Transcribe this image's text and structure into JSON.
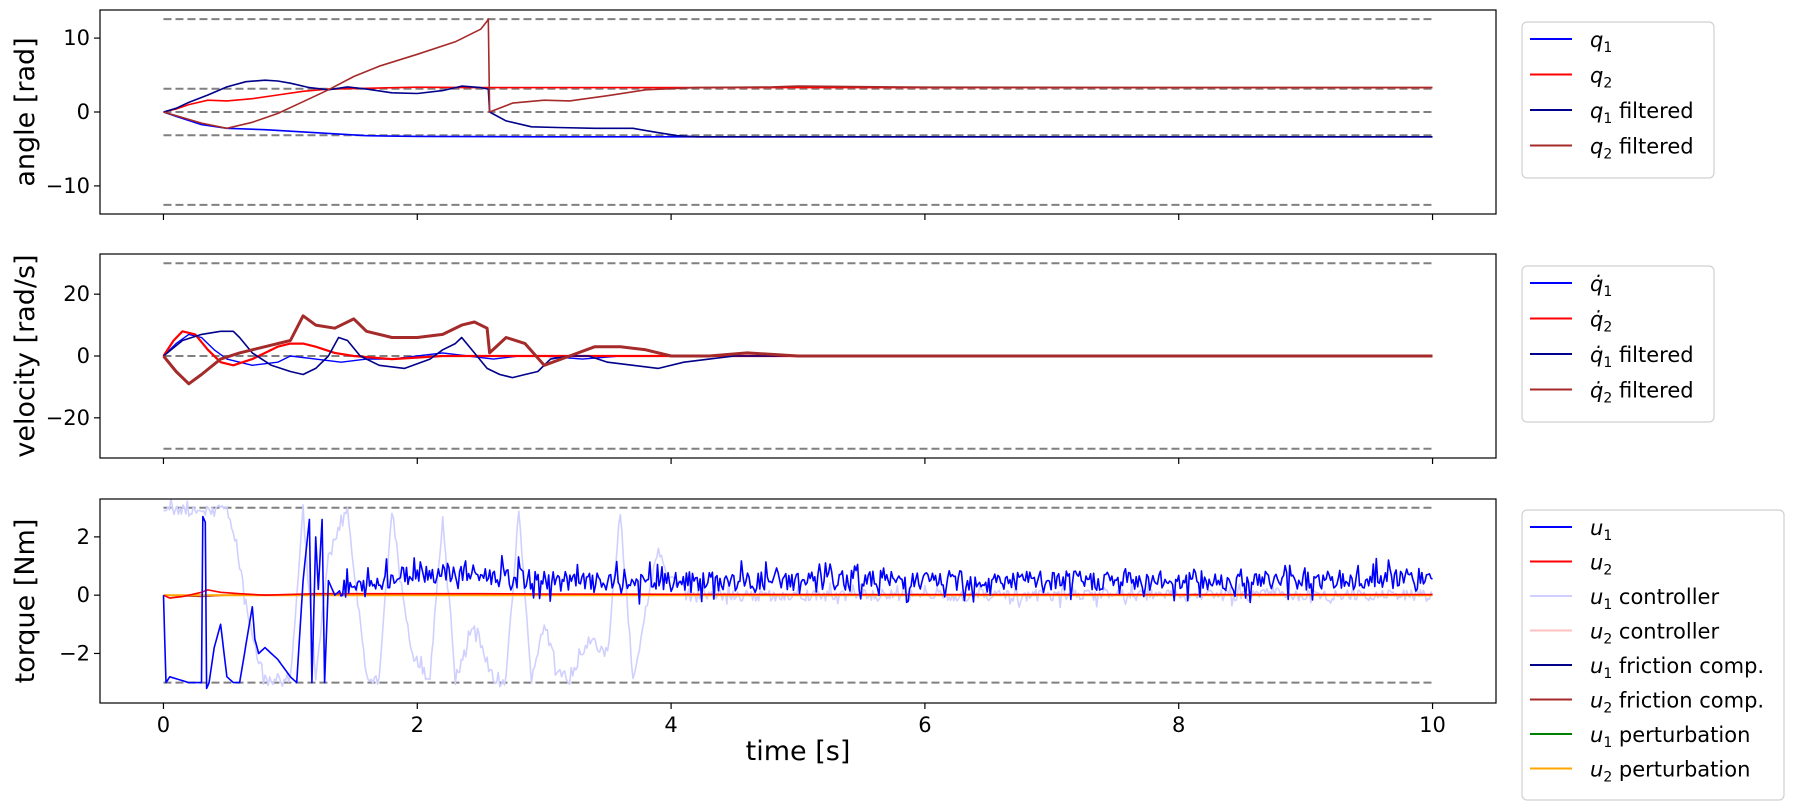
{
  "chart_data": [
    {
      "type": "line",
      "ylabel": "angle [rad]",
      "xlabel": "",
      "xlim": [
        -0.5,
        10.5
      ],
      "ylim": [
        -13.8,
        13.8
      ],
      "xticks": [
        0,
        2,
        4,
        6,
        8,
        10
      ],
      "xtick_labels": [
        "",
        "",
        "",
        "",
        "",
        ""
      ],
      "yticks": [
        -10,
        0,
        10
      ],
      "ytick_labels": [
        "−10",
        "0",
        "10"
      ],
      "grid": false,
      "legend_position": "outside-right-top",
      "hlines": [
        -12.57,
        -3.14,
        0,
        3.14,
        12.57
      ],
      "series": [
        {
          "name": "q",
          "name_sub": "1",
          "name_suffix": "",
          "color": "#0000ff",
          "width": 1.6,
          "x": [
            0,
            0.1,
            0.3,
            0.5,
            0.8,
            1.2,
            1.6,
            2.0,
            3.0,
            4.0,
            6.0,
            8.0,
            10.0
          ],
          "y": [
            0,
            -0.6,
            -1.7,
            -2.2,
            -2.4,
            -2.8,
            -3.2,
            -3.3,
            -3.35,
            -3.35,
            -3.35,
            -3.35,
            -3.35
          ]
        },
        {
          "name": "q",
          "name_sub": "2",
          "name_suffix": "",
          "color": "#ff0000",
          "width": 1.6,
          "x": [
            0,
            0.1,
            0.2,
            0.35,
            0.5,
            0.7,
            0.9,
            1.1,
            1.3,
            1.6,
            2.0,
            2.4,
            2.55,
            3.0,
            4.0,
            6.0,
            8.0,
            10.0
          ],
          "y": [
            0,
            0.4,
            1.0,
            1.6,
            1.5,
            1.8,
            2.3,
            2.8,
            3.1,
            3.2,
            3.35,
            3.3,
            3.3,
            3.3,
            3.3,
            3.3,
            3.3,
            3.3
          ]
        },
        {
          "name": "q",
          "name_sub": "1",
          "name_suffix": " filtered",
          "color": "#00008b",
          "width": 1.6,
          "x": [
            0,
            0.1,
            0.2,
            0.35,
            0.5,
            0.65,
            0.8,
            0.9,
            1.0,
            1.15,
            1.3,
            1.45,
            1.6,
            1.8,
            2.0,
            2.2,
            2.35,
            2.5,
            2.56,
            2.57,
            2.7,
            2.9,
            3.1,
            3.4,
            3.7,
            3.9,
            4.05,
            4.2,
            5.0,
            7.0,
            10.0
          ],
          "y": [
            0,
            0.5,
            1.3,
            2.3,
            3.4,
            4.1,
            4.3,
            4.2,
            3.9,
            3.3,
            3.0,
            3.4,
            3.1,
            2.6,
            2.5,
            2.9,
            3.5,
            3.3,
            3.1,
            0,
            -1.2,
            -2.0,
            -2.1,
            -2.2,
            -2.2,
            -2.8,
            -3.2,
            -3.35,
            -3.35,
            -3.35,
            -3.35
          ]
        },
        {
          "name": "q",
          "name_sub": "2",
          "name_suffix": " filtered",
          "color": "#a52a2a",
          "width": 1.6,
          "x": [
            0,
            0.1,
            0.3,
            0.5,
            0.7,
            0.9,
            1.1,
            1.3,
            1.5,
            1.7,
            2.0,
            2.3,
            2.5,
            2.55,
            2.56,
            2.57,
            2.75,
            3.0,
            3.2,
            3.5,
            3.8,
            4.2,
            4.8,
            5.0,
            6.0,
            8.0,
            10.0
          ],
          "y": [
            0,
            -0.5,
            -1.5,
            -2.2,
            -1.4,
            -0.2,
            1.4,
            3.0,
            4.8,
            6.2,
            7.8,
            9.5,
            11.2,
            12.3,
            12.6,
            0,
            1.2,
            1.6,
            1.5,
            2.2,
            3.0,
            3.3,
            3.4,
            3.5,
            3.35,
            3.3,
            3.3
          ]
        }
      ]
    },
    {
      "type": "line",
      "ylabel": "velocity [rad/s]",
      "xlabel": "",
      "xlim": [
        -0.5,
        10.5
      ],
      "ylim": [
        -33,
        33
      ],
      "xticks": [
        0,
        2,
        4,
        6,
        8,
        10
      ],
      "xtick_labels": [
        "",
        "",
        "",
        "",
        "",
        ""
      ],
      "yticks": [
        -20,
        0,
        20
      ],
      "ytick_labels": [
        "−20",
        "0",
        "20"
      ],
      "grid": false,
      "legend_position": "outside-right-top",
      "hlines": [
        -30,
        0,
        30
      ],
      "series": [
        {
          "name": "q̇",
          "name_sub": "1",
          "name_suffix": "",
          "color": "#0000ff",
          "width": 1.4,
          "x": [
            0,
            0.1,
            0.2,
            0.3,
            0.4,
            0.5,
            0.7,
            0.9,
            1.0,
            1.2,
            1.4,
            1.6,
            1.8,
            2.0,
            2.2,
            2.4,
            2.6,
            2.8,
            3.0,
            3.3,
            3.6,
            4.0,
            4.5,
            5.0,
            10.0
          ],
          "y": [
            0,
            4,
            7,
            6,
            2,
            -1,
            -3,
            -2,
            0,
            -1,
            -2,
            -1,
            -1,
            0,
            1,
            0,
            -1,
            0,
            0,
            -1,
            0,
            0,
            0,
            0,
            0
          ]
        },
        {
          "name": "q̇",
          "name_sub": "2",
          "name_suffix": "",
          "color": "#ff0000",
          "width": 2.2,
          "x": [
            0,
            0.08,
            0.15,
            0.25,
            0.35,
            0.45,
            0.55,
            0.7,
            0.9,
            1.0,
            1.1,
            1.2,
            1.35,
            1.5,
            1.8,
            2.2,
            2.6,
            3.0,
            4.0,
            6.0,
            10.0
          ],
          "y": [
            0,
            5,
            8,
            7,
            2,
            -2,
            -3,
            -1,
            3,
            4,
            4,
            3,
            1,
            0,
            -1,
            0,
            0,
            0,
            0,
            0,
            0
          ]
        },
        {
          "name": "q̇",
          "name_sub": "1",
          "name_suffix": " filtered",
          "color": "#00008b",
          "width": 1.6,
          "x": [
            0,
            0.15,
            0.3,
            0.45,
            0.55,
            0.6,
            0.7,
            0.85,
            1.0,
            1.1,
            1.2,
            1.3,
            1.38,
            1.45,
            1.55,
            1.7,
            1.9,
            2.1,
            2.2,
            2.3,
            2.35,
            2.45,
            2.55,
            2.65,
            2.75,
            2.85,
            2.95,
            3.05,
            3.2,
            3.35,
            3.5,
            3.7,
            3.9,
            4.1,
            4.3,
            4.5,
            4.8,
            5.2,
            6.0,
            10.0
          ],
          "y": [
            0,
            5,
            7,
            8,
            8,
            6,
            1,
            -3,
            -5,
            -6,
            -4,
            0,
            6,
            5,
            0,
            -3,
            -4,
            -1,
            2,
            4,
            6,
            1,
            -4,
            -6,
            -7,
            -6,
            -5,
            -1,
            0,
            0,
            -2,
            -3,
            -4,
            -2,
            -1,
            0,
            0,
            0,
            0,
            0
          ]
        },
        {
          "name": "q̇",
          "name_sub": "2",
          "name_suffix": " filtered",
          "color": "#a52a2a",
          "width": 3.0,
          "x": [
            0,
            0.1,
            0.2,
            0.3,
            0.45,
            0.6,
            0.8,
            1.0,
            1.1,
            1.2,
            1.35,
            1.5,
            1.6,
            1.8,
            2.0,
            2.2,
            2.35,
            2.45,
            2.55,
            2.57,
            2.7,
            2.85,
            3.0,
            3.2,
            3.4,
            3.6,
            3.8,
            4.0,
            4.3,
            4.6,
            5.0,
            6.0,
            10.0
          ],
          "y": [
            0,
            -5,
            -9,
            -6,
            -1,
            1,
            3,
            5,
            13,
            10,
            9,
            12,
            8,
            6,
            6,
            7,
            10,
            11,
            9,
            1,
            6,
            4,
            -3,
            0,
            3,
            3,
            2,
            0,
            0,
            1,
            0,
            0,
            0
          ]
        }
      ]
    },
    {
      "type": "line",
      "ylabel": "torque [Nm]",
      "xlabel": "time [s]",
      "xlim": [
        -0.5,
        10.5
      ],
      "ylim": [
        -3.7,
        3.3
      ],
      "xticks": [
        0,
        2,
        4,
        6,
        8,
        10
      ],
      "xtick_labels": [
        "0",
        "2",
        "4",
        "6",
        "8",
        "10"
      ],
      "yticks": [
        -2,
        0,
        2
      ],
      "ytick_labels": [
        "−2",
        "0",
        "2"
      ],
      "grid": false,
      "legend_position": "outside-right-top",
      "hlines": [
        -3,
        3
      ],
      "series": [
        {
          "name": "u",
          "name_sub": "1",
          "name_suffix": " controller",
          "color": "#d0d0ff",
          "width": 1.6,
          "noise": 0.2,
          "x": [
            0,
            0.2,
            0.4,
            0.5,
            0.6,
            0.7,
            0.8,
            0.9,
            1.0,
            1.05,
            1.1,
            1.2,
            1.3,
            1.45,
            1.6,
            1.7,
            1.8,
            1.95,
            2.1,
            2.2,
            2.3,
            2.45,
            2.6,
            2.7,
            2.8,
            2.9,
            3.0,
            3.1,
            3.2,
            3.35,
            3.5,
            3.6,
            3.7,
            3.8,
            3.9,
            4.0,
            4.2,
            4.5,
            5.0,
            6.0,
            8.0,
            10.0
          ],
          "y": [
            2.9,
            2.9,
            2.9,
            2.9,
            1.0,
            -1.5,
            -2.9,
            -2.9,
            -2.9,
            0,
            2.9,
            -2.9,
            1.5,
            2.9,
            -2.9,
            -2.9,
            2.9,
            -2.0,
            -2.9,
            2.8,
            -2.9,
            -1.0,
            -2.9,
            -2.9,
            2.9,
            -2.9,
            -1.0,
            -2.5,
            -2.9,
            -1.5,
            -2.0,
            2.9,
            -2.9,
            -0.5,
            1.5,
            0.5,
            0,
            0,
            0,
            0,
            0,
            0
          ]
        },
        {
          "name": "u",
          "name_sub": "2",
          "name_suffix": " controller",
          "color": "#ffc0c0",
          "width": 1.4,
          "x": [
            0,
            1.0,
            2.0,
            4.0,
            10.0
          ],
          "y": [
            0,
            0.02,
            0,
            0,
            0
          ]
        },
        {
          "name": "u",
          "name_sub": "1",
          "name_suffix": " friction comp.",
          "color": "#00008b",
          "width": 1.4,
          "x": [
            0,
            10.0
          ],
          "y": [
            0,
            0
          ]
        },
        {
          "name": "u",
          "name_sub": "2",
          "name_suffix": " friction comp.",
          "color": "#a52a2a",
          "width": 1.4,
          "x": [
            0,
            0.3,
            0.6,
            1.0,
            2.0,
            10.0
          ],
          "y": [
            0,
            -0.05,
            0.02,
            0,
            0.02,
            0
          ]
        },
        {
          "name": "u",
          "name_sub": "1",
          "name_suffix": " perturbation",
          "color": "#008000",
          "width": 1.4,
          "x": [
            0,
            10.0
          ],
          "y": [
            0,
            0
          ]
        },
        {
          "name": "u",
          "name_sub": "2",
          "name_suffix": " perturbation",
          "color": "#ffa500",
          "width": 2.0,
          "x": [
            0,
            10.0
          ],
          "y": [
            0,
            0
          ]
        },
        {
          "name": "u",
          "name_sub": "2",
          "name_suffix": "",
          "color": "#ff0000",
          "width": 1.6,
          "x": [
            0,
            0.05,
            0.15,
            0.3,
            0.35,
            0.45,
            0.6,
            0.8,
            1.2,
            1.6,
            2.0,
            2.5,
            3.0,
            4.0,
            6.0,
            10.0
          ],
          "y": [
            0,
            -0.1,
            -0.05,
            0.1,
            0.18,
            0.1,
            0.05,
            0.0,
            0.05,
            0.05,
            0.05,
            0.05,
            0.04,
            0.03,
            0.02,
            0.02
          ]
        },
        {
          "name": "u",
          "name_sub": "1",
          "name_suffix": "",
          "color": "#0000ff",
          "width": 1.6,
          "noise": 0.35,
          "noise_from": 1.4,
          "x": [
            0,
            0.02,
            0.05,
            0.2,
            0.3,
            0.31,
            0.33,
            0.34,
            0.36,
            0.4,
            0.45,
            0.5,
            0.55,
            0.6,
            0.7,
            0.72,
            0.75,
            0.8,
            0.9,
            1.0,
            1.05,
            1.1,
            1.15,
            1.17,
            1.2,
            1.22,
            1.25,
            1.27,
            1.3,
            1.35,
            1.4,
            1.6,
            2.0,
            2.5,
            3.0,
            3.5,
            4.0,
            5.0,
            6.0,
            8.0,
            10.0
          ],
          "y": [
            0,
            -3.0,
            -2.8,
            -3.0,
            -3.0,
            2.7,
            2.5,
            -3.2,
            -3.0,
            -1.8,
            -1.0,
            -2.8,
            -3.0,
            -3.0,
            -0.4,
            -1.5,
            -2.0,
            -1.8,
            -2.2,
            -2.8,
            -3.0,
            0.5,
            2.6,
            -3.0,
            2.0,
            0.2,
            2.6,
            -3.0,
            0.5,
            0.0,
            0.2,
            0.3,
            0.8,
            0.7,
            0.5,
            0.4,
            0.45,
            0.5,
            0.5,
            0.5,
            0.55
          ]
        }
      ]
    }
  ],
  "legends": [
    [
      {
        "color": "#0000ff",
        "sym": "q",
        "sub": "1",
        "suffix": ""
      },
      {
        "color": "#ff0000",
        "sym": "q",
        "sub": "2",
        "suffix": ""
      },
      {
        "color": "#00008b",
        "sym": "q",
        "sub": "1",
        "suffix": " filtered"
      },
      {
        "color": "#a52a2a",
        "sym": "q",
        "sub": "2",
        "suffix": " filtered"
      }
    ],
    [
      {
        "color": "#0000ff",
        "sym": "q̇",
        "sub": "1",
        "suffix": ""
      },
      {
        "color": "#ff0000",
        "sym": "q̇",
        "sub": "2",
        "suffix": ""
      },
      {
        "color": "#00008b",
        "sym": "q̇",
        "sub": "1",
        "suffix": " filtered"
      },
      {
        "color": "#a52a2a",
        "sym": "q̇",
        "sub": "2",
        "suffix": " filtered"
      }
    ],
    [
      {
        "color": "#0000ff",
        "sym": "u",
        "sub": "1",
        "suffix": ""
      },
      {
        "color": "#ff0000",
        "sym": "u",
        "sub": "2",
        "suffix": ""
      },
      {
        "color": "#d0d0ff",
        "sym": "u",
        "sub": "1",
        "suffix": " controller"
      },
      {
        "color": "#ffc0c0",
        "sym": "u",
        "sub": "2",
        "suffix": " controller"
      },
      {
        "color": "#00008b",
        "sym": "u",
        "sub": "1",
        "suffix": " friction comp."
      },
      {
        "color": "#a52a2a",
        "sym": "u",
        "sub": "2",
        "suffix": " friction comp."
      },
      {
        "color": "#008000",
        "sym": "u",
        "sub": "1",
        "suffix": " perturbation"
      },
      {
        "color": "#ffa500",
        "sym": "u",
        "sub": "2",
        "suffix": " perturbation"
      }
    ]
  ]
}
